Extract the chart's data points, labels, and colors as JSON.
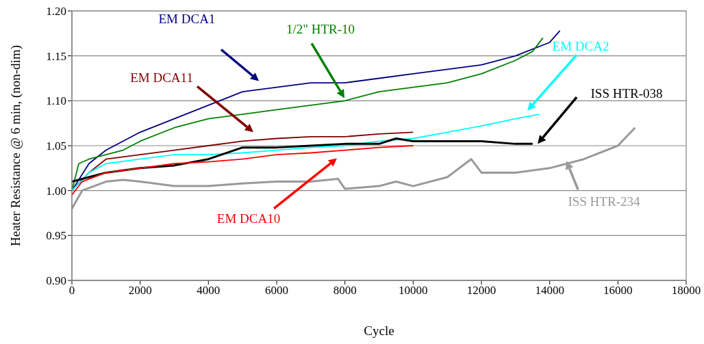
{
  "chart_data": {
    "type": "line",
    "xlabel": "Cycle",
    "ylabel": "Heater Resistance @ 6 min, (non-dim)",
    "xlim": [
      0,
      18000
    ],
    "xticks": [
      0,
      2000,
      4000,
      6000,
      8000,
      10000,
      12000,
      14000,
      16000,
      18000
    ],
    "ylim": [
      0.9,
      1.2
    ],
    "yticks": [
      {
        "value": 0.9,
        "label": "0.90"
      },
      0.95,
      {
        "value": 1.0,
        "label": "1.00"
      },
      1.05,
      {
        "value": 1.1,
        "label": "1.10"
      },
      1.15,
      {
        "value": 1.2,
        "label": "1.20"
      }
    ],
    "grid": "y",
    "marker": "none",
    "line_style": "solid",
    "series": [
      {
        "name": "EM DCA1",
        "color": "#000080",
        "x": [
          0,
          500,
          1000,
          2000,
          3000,
          4000,
          5000,
          6000,
          7000,
          8000,
          9000,
          10000,
          11000,
          12000,
          13000,
          14000,
          14300
        ],
        "values": [
          1.0,
          1.03,
          1.045,
          1.065,
          1.08,
          1.095,
          1.11,
          1.115,
          1.12,
          1.12,
          1.125,
          1.13,
          1.135,
          1.14,
          1.15,
          1.165,
          1.178
        ]
      },
      {
        "name": "1/2\" HTR-10",
        "color": "#008000",
        "x": [
          0,
          200,
          500,
          1000,
          1500,
          2000,
          3000,
          4000,
          5000,
          6000,
          7000,
          8000,
          9000,
          10000,
          11000,
          12000,
          13000,
          13500,
          13800
        ],
        "values": [
          1.0,
          1.03,
          1.035,
          1.04,
          1.045,
          1.055,
          1.07,
          1.08,
          1.085,
          1.09,
          1.095,
          1.1,
          1.11,
          1.115,
          1.12,
          1.13,
          1.145,
          1.155,
          1.17
        ]
      },
      {
        "name": "EM DCA11",
        "color": "#800000",
        "x": [
          0,
          500,
          1000,
          2000,
          3000,
          4000,
          5000,
          6000,
          7000,
          8000,
          9000,
          10000
        ],
        "values": [
          1.0,
          1.02,
          1.035,
          1.04,
          1.045,
          1.05,
          1.055,
          1.058,
          1.06,
          1.06,
          1.063,
          1.065
        ]
      },
      {
        "name": "EM DCA2",
        "color": "#00ffff",
        "x": [
          0,
          500,
          1000,
          2000,
          3000,
          4000,
          5000,
          6000,
          7000,
          8000,
          9000,
          10000,
          11000,
          12000,
          13000,
          13700
        ],
        "values": [
          1.0,
          1.02,
          1.03,
          1.035,
          1.04,
          1.04,
          1.042,
          1.045,
          1.048,
          1.05,
          1.055,
          1.058,
          1.065,
          1.072,
          1.08,
          1.085
        ]
      },
      {
        "name": "ISS HTR-038",
        "color": "#000000",
        "x": [
          0,
          500,
          1000,
          2000,
          3000,
          4000,
          5000,
          6000,
          7000,
          8000,
          9000,
          9500,
          10000,
          11000,
          12000,
          13000,
          13500
        ],
        "values": [
          1.01,
          1.015,
          1.02,
          1.025,
          1.028,
          1.035,
          1.048,
          1.048,
          1.05,
          1.052,
          1.052,
          1.058,
          1.055,
          1.055,
          1.055,
          1.052,
          1.052
        ]
      },
      {
        "name": "EM DCA10",
        "color": "#ff0000",
        "x": [
          0,
          300,
          1000,
          2000,
          3000,
          4000,
          5000,
          6000,
          7000,
          8000,
          9000,
          10000
        ],
        "values": [
          0.995,
          1.01,
          1.02,
          1.025,
          1.03,
          1.032,
          1.035,
          1.04,
          1.042,
          1.045,
          1.048,
          1.05
        ]
      },
      {
        "name": "ISS HTR-234",
        "color": "#999999",
        "x": [
          0,
          300,
          1000,
          1500,
          2000,
          3000,
          4000,
          5000,
          6000,
          7000,
          7800,
          8000,
          9000,
          9500,
          10000,
          11000,
          11700,
          12000,
          12500,
          13000,
          14000,
          15000,
          16000,
          16500
        ],
        "values": [
          0.98,
          1.0,
          1.01,
          1.012,
          1.01,
          1.005,
          1.005,
          1.008,
          1.01,
          1.01,
          1.013,
          1.002,
          1.005,
          1.01,
          1.005,
          1.015,
          1.035,
          1.02,
          1.02,
          1.02,
          1.025,
          1.035,
          1.05,
          1.07
        ]
      }
    ]
  }
}
